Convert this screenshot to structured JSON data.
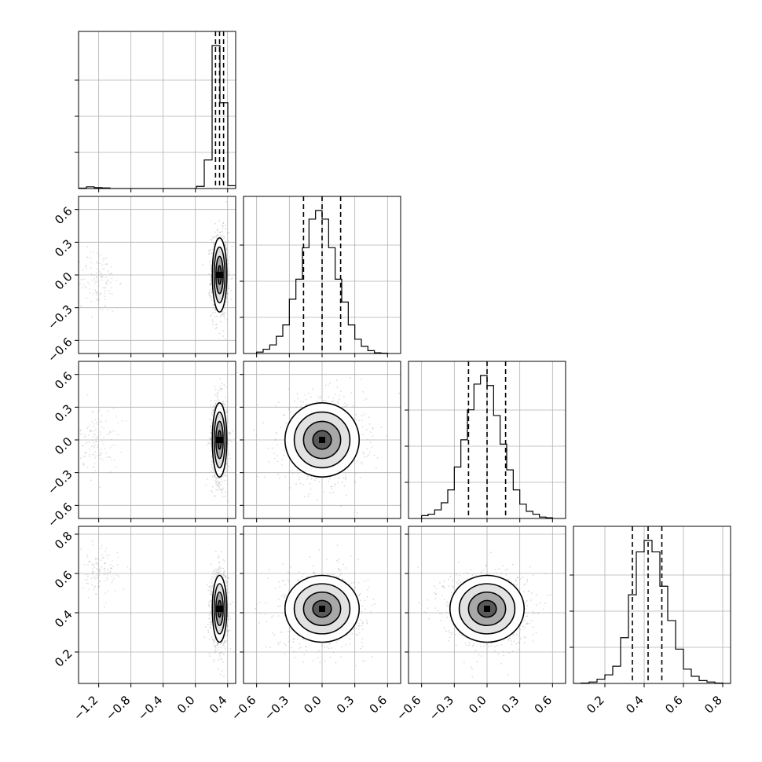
{
  "chart_data": {
    "type": "corner",
    "parameters": [
      "",
      "",
      "",
      ""
    ],
    "ranges": [
      [
        -1.45,
        0.5
      ],
      [
        -0.72,
        0.72
      ],
      [
        -0.72,
        0.72
      ],
      [
        0.04,
        0.84
      ]
    ],
    "ticks": [
      [
        -1.2,
        -0.8,
        -0.4,
        0.0,
        0.4
      ],
      [
        -0.6,
        -0.3,
        0.0,
        0.3,
        0.6
      ],
      [
        -0.6,
        -0.3,
        0.0,
        0.3,
        0.6
      ],
      [
        0.2,
        0.4,
        0.6,
        0.8
      ]
    ],
    "tick_labels": [
      [
        "−1.2",
        "−0.8",
        "−0.4",
        "0.0",
        "0.4"
      ],
      [
        "−0.6",
        "−0.3",
        "0.0",
        "0.3",
        "0.6"
      ],
      [
        "−0.6",
        "−0.3",
        "0.0",
        "0.3",
        "0.6"
      ],
      [
        "0.2",
        "0.4",
        "0.6",
        "0.8"
      ]
    ],
    "quantiles": [
      [
        0.25,
        0.3,
        0.35
      ],
      [
        -0.17,
        0.0,
        0.17
      ],
      [
        -0.17,
        0.0,
        0.17
      ],
      [
        0.34,
        0.42,
        0.49
      ]
    ],
    "histograms": [
      {
        "bin_edges": [
          -1.45,
          -1.3525,
          -1.255,
          -1.1575,
          -1.06,
          -0.9625,
          -0.865,
          -0.7675,
          -0.67,
          -0.5725,
          -0.475,
          -0.3775,
          -0.28,
          -0.1825,
          -0.085,
          0.0125,
          0.11,
          0.2075,
          0.305,
          0.4025,
          0.5
        ],
        "counts": [
          0.003,
          0.012,
          0.006,
          0.004,
          0.0,
          0.0,
          0.0,
          0.0,
          0.0,
          0.0,
          0.0,
          0.0,
          0.0,
          0.0,
          0.0,
          0.015,
          0.2,
          1.0,
          0.6,
          0.02
        ]
      },
      {
        "bin_edges": [
          -0.6,
          -0.54,
          -0.48,
          -0.42,
          -0.36,
          -0.3,
          -0.24,
          -0.18,
          -0.12,
          -0.06,
          0.0,
          0.06,
          0.12,
          0.18,
          0.24,
          0.3,
          0.36,
          0.42,
          0.48,
          0.54,
          0.6
        ],
        "counts": [
          0.01,
          0.03,
          0.06,
          0.12,
          0.2,
          0.38,
          0.52,
          0.74,
          0.94,
          1.0,
          0.94,
          0.74,
          0.52,
          0.36,
          0.2,
          0.1,
          0.05,
          0.02,
          0.005,
          0.002
        ]
      },
      {
        "bin_edges": [
          -0.6,
          -0.54,
          -0.48,
          -0.42,
          -0.36,
          -0.3,
          -0.24,
          -0.18,
          -0.12,
          -0.06,
          0.0,
          0.06,
          0.12,
          0.18,
          0.24,
          0.3,
          0.36,
          0.42,
          0.48,
          0.54,
          0.6
        ],
        "counts": [
          0.02,
          0.03,
          0.06,
          0.11,
          0.2,
          0.36,
          0.55,
          0.76,
          0.94,
          1.0,
          0.93,
          0.72,
          0.52,
          0.34,
          0.2,
          0.1,
          0.05,
          0.03,
          0.01,
          0.005
        ]
      },
      {
        "bin_edges": [
          0.04,
          0.08,
          0.12,
          0.16,
          0.2,
          0.24,
          0.28,
          0.32,
          0.36,
          0.4,
          0.44,
          0.48,
          0.52,
          0.56,
          0.6,
          0.64,
          0.68,
          0.72,
          0.76,
          0.8,
          0.84
        ],
        "counts": [
          0.0,
          0.003,
          0.01,
          0.03,
          0.06,
          0.12,
          0.32,
          0.62,
          0.92,
          1.0,
          0.92,
          0.68,
          0.44,
          0.24,
          0.1,
          0.05,
          0.02,
          0.01,
          0.003,
          0.0
        ]
      }
    ],
    "contours": [
      {
        "x_param": 0,
        "y_param": 1,
        "center": [
          0.3,
          0.0
        ],
        "sigma": [
          0.045,
          0.17
        ],
        "rho": 0.0,
        "minor_mode": [
          -1.2,
          -0.05,
          0.12,
          0.15
        ]
      },
      {
        "x_param": 0,
        "y_param": 2,
        "center": [
          0.3,
          0.0
        ],
        "sigma": [
          0.045,
          0.17
        ],
        "rho": 0.0,
        "minor_mode": [
          -1.2,
          0.0,
          0.12,
          0.15
        ]
      },
      {
        "x_param": 0,
        "y_param": 3,
        "center": [
          0.3,
          0.42
        ],
        "sigma": [
          0.045,
          0.085
        ],
        "rho": 0.0,
        "minor_mode": [
          -1.2,
          0.6,
          0.12,
          0.06
        ]
      },
      {
        "x_param": 1,
        "y_param": 2,
        "center": [
          0.0,
          0.0
        ],
        "sigma": [
          0.17,
          0.17
        ],
        "rho": 0.0
      },
      {
        "x_param": 1,
        "y_param": 3,
        "center": [
          0.0,
          0.42
        ],
        "sigma": [
          0.17,
          0.085
        ],
        "rho": 0.0
      },
      {
        "x_param": 2,
        "y_param": 3,
        "center": [
          0.0,
          0.42
        ],
        "sigma": [
          0.17,
          0.085
        ],
        "rho": 0.0
      }
    ],
    "contour_levels_sigma": [
      0.5,
      1.0,
      1.5,
      2.0
    ],
    "grid": true
  }
}
